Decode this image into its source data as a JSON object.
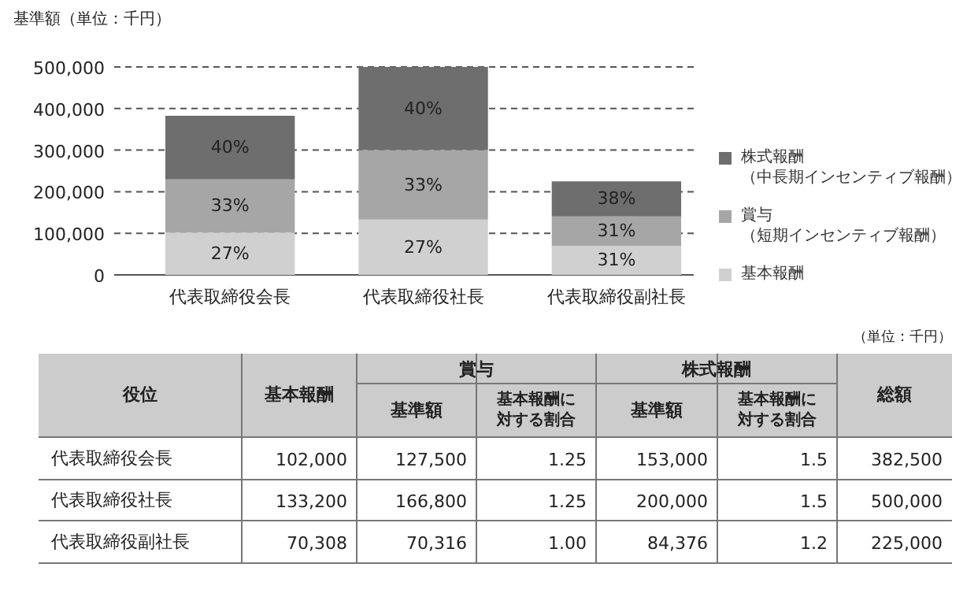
{
  "chart_data": {
    "type": "bar",
    "stacked": true,
    "ylabel": "基準額（単位：千円）",
    "categories": [
      "代表取締役会長",
      "代表取締役社長",
      "代表取締役副社長"
    ],
    "series": [
      {
        "name": "基本報酬",
        "color": "#d0d0d0",
        "values": [
          102000,
          133200,
          70308
        ]
      },
      {
        "name": "賞与（短期インセンティブ報酬）",
        "color": "#a6a6a6",
        "values": [
          127500,
          166800,
          70316
        ]
      },
      {
        "name": "株式報酬（中長期インセンティブ報酬）",
        "color": "#6e6e6e",
        "values": [
          153000,
          200000,
          84376
        ]
      }
    ],
    "ylim": [
      0,
      500000
    ],
    "yticks": [
      {
        "value": 0,
        "label": "0"
      },
      {
        "value": 100000,
        "label": "100,000"
      },
      {
        "value": 200000,
        "label": "200,000"
      },
      {
        "value": 300000,
        "label": "300,000"
      },
      {
        "value": 400000,
        "label": "400,000"
      },
      {
        "value": 500000,
        "label": "500,000"
      }
    ],
    "grid": "y",
    "legend": "right",
    "annotations": [
      "（単位：千円）",
      "役位",
      "基本報酬",
      "賞与",
      "基準額",
      "基本報酬に対する割合",
      "株式報酬",
      "基準額",
      "基本報酬に対する割合",
      "総額",
      "102,000",
      "127,500",
      "1.25",
      "153,000",
      "1.5",
      "382,500",
      "133,200",
      "166,800",
      "1.25",
      "200,000",
      "1.5",
      "500,000",
      "70,308",
      "70,316",
      "1.00",
      "84,376",
      "1.2",
      "225,000",
      "27%",
      "27%",
      "31%",
      "33%",
      "33%",
      "31%",
      "40%",
      "40%",
      "38%"
    ]
  }
}
